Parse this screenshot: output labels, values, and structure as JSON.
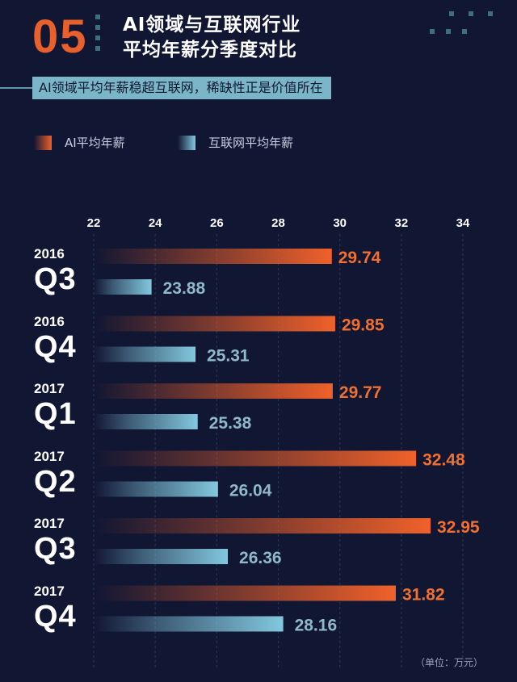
{
  "header": {
    "number": "05",
    "title_line1": "AI领域与互联网行业",
    "title_line2": "平均年薪分季度对比",
    "subtitle": "AI领域平均年薪稳超互联网，稀缺性正是价值所在"
  },
  "legend": {
    "ai_label": "AI平均年薪",
    "internet_label": "互联网平均年薪"
  },
  "unit": "（单位：万元）",
  "colors": {
    "background": "#111633",
    "ai": "#f0612a",
    "internet": "#82c8de",
    "ai_label": "#f07030",
    "internet_label": "#8fb8c9",
    "accent": "#e8612c"
  },
  "chart_data": {
    "type": "bar",
    "orientation": "horizontal",
    "title": "AI领域与互联网行业平均年薪分季度对比",
    "xlim": [
      22,
      34
    ],
    "ticks": [
      "22",
      "24",
      "26",
      "28",
      "30",
      "32",
      "34"
    ],
    "grid": true,
    "legend_placement": "top-left",
    "categories": [
      {
        "year": "2016",
        "quarter": "Q3"
      },
      {
        "year": "2016",
        "quarter": "Q4"
      },
      {
        "year": "2017",
        "quarter": "Q1"
      },
      {
        "year": "2017",
        "quarter": "Q2"
      },
      {
        "year": "2017",
        "quarter": "Q3"
      },
      {
        "year": "2017",
        "quarter": "Q4"
      }
    ],
    "series": [
      {
        "name": "AI平均年薪",
        "values": [
          29.74,
          29.85,
          29.77,
          32.48,
          32.95,
          31.82
        ]
      },
      {
        "name": "互联网平均年薪",
        "values": [
          23.88,
          25.31,
          25.38,
          26.04,
          26.36,
          28.16
        ]
      }
    ]
  }
}
